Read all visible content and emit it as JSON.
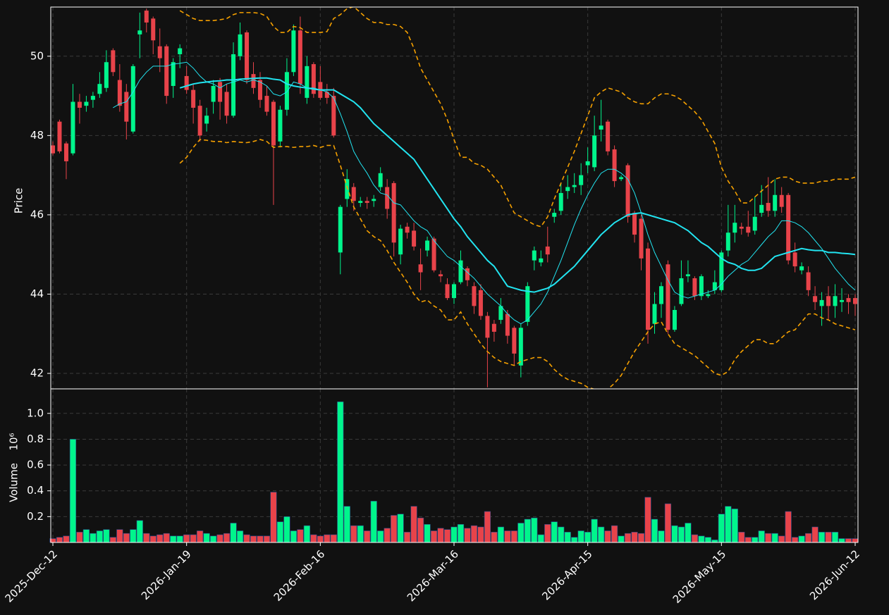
{
  "chart_data": {
    "type": "candlestick",
    "ylabel": "Price",
    "volume_label": "Volume",
    "volume_exponent": "10⁶",
    "up_color": "#00f58c",
    "down_color": "#e8434a",
    "grid": true,
    "ylim": [
      41.61,
      51.24
    ],
    "yticks": [
      42,
      44,
      46,
      48,
      50
    ],
    "volume_ylim": [
      0,
      1.19
    ],
    "volume_yticks": [
      0.2,
      0.4,
      0.6,
      0.8,
      {
        "value": 1,
        "label": "1.0"
      }
    ],
    "categories": [
      "2025-Dec-12",
      null,
      null,
      null,
      null,
      null,
      null,
      null,
      null,
      null,
      null,
      null,
      null,
      null,
      null,
      null,
      null,
      null,
      null,
      null,
      "2026-Jan-19",
      null,
      null,
      null,
      null,
      null,
      null,
      null,
      null,
      null,
      null,
      null,
      null,
      null,
      null,
      null,
      null,
      null,
      null,
      null,
      "2026-Feb-16",
      null,
      null,
      null,
      null,
      null,
      null,
      null,
      null,
      null,
      null,
      null,
      null,
      null,
      null,
      null,
      null,
      null,
      null,
      null,
      "2026-Mar-16",
      null,
      null,
      null,
      null,
      null,
      null,
      null,
      null,
      null,
      null,
      null,
      null,
      null,
      null,
      null,
      null,
      null,
      null,
      null,
      "2026-Apr-15",
      null,
      null,
      null,
      null,
      null,
      null,
      null,
      null,
      null,
      null,
      null,
      null,
      null,
      null,
      null,
      null,
      null,
      null,
      null,
      "2026-May-15",
      null,
      null,
      null,
      null,
      null,
      null,
      null,
      null,
      null,
      null,
      null,
      null,
      null,
      null,
      null,
      null,
      null,
      null,
      null,
      "2026-Jun-12"
    ],
    "open": [
      47.75,
      48.35,
      47.8,
      47.55,
      48.85,
      48.75,
      48.9,
      49.05,
      49.2,
      50.15,
      49.4,
      49.1,
      48.1,
      50.55,
      51.15,
      50.95,
      50.25,
      50.25,
      49.25,
      50.05,
      49.5,
      49.15,
      48.75,
      48.3,
      48.85,
      49.35,
      49.1,
      48.5,
      50.0,
      50.6,
      49.55,
      49.4,
      49.0,
      48.85,
      47.85,
      48.65,
      49.6,
      50.65,
      48.95,
      49.8,
      49.35,
      49.1,
      49.0,
      45.05,
      46.4,
      46.7,
      46.3,
      46.35,
      46.35,
      46.7,
      46.7,
      46.8,
      45.0,
      45.7,
      45.6,
      44.75,
      45.1,
      45.4,
      44.5,
      44.25,
      43.9,
      44.3,
      44.65,
      44.2,
      44.1,
      43.45,
      43.25,
      43.35,
      43.5,
      43.15,
      42.2,
      43.3,
      44.85,
      44.8,
      45.2,
      45.95,
      46.1,
      46.6,
      46.7,
      46.75,
      47.25,
      47.2,
      48.15,
      48.35,
      47.65,
      46.9,
      47.25,
      46.05,
      45.9,
      45.15,
      43.25,
      43.75,
      44.75,
      43.1,
      43.75,
      44.45,
      44.4,
      43.95,
      43.95,
      44.1,
      44.1,
      45.1,
      45.55,
      45.7,
      45.7,
      45.6,
      46.05,
      46.3,
      46.1,
      46.5,
      46.5,
      45.05,
      44.6,
      44.55,
      43.95,
      43.7,
      43.95,
      43.7,
      43.8,
      43.9,
      43.9
    ],
    "close": [
      47.55,
      47.6,
      47.35,
      48.85,
      48.7,
      48.85,
      49.0,
      49.3,
      49.85,
      49.6,
      48.75,
      48.35,
      49.75,
      50.65,
      50.85,
      50.4,
      49.95,
      49.0,
      49.85,
      50.2,
      49.15,
      48.7,
      48.0,
      48.5,
      49.25,
      48.85,
      48.5,
      50.05,
      50.55,
      49.4,
      49.2,
      48.9,
      48.6,
      47.75,
      48.65,
      49.6,
      50.65,
      49.3,
      49.75,
      49.05,
      48.95,
      48.95,
      48.0,
      46.2,
      46.9,
      46.35,
      46.35,
      46.3,
      46.4,
      47.05,
      46.15,
      45.3,
      45.65,
      45.55,
      45.2,
      44.55,
      45.35,
      44.6,
      44.45,
      43.9,
      44.25,
      44.85,
      44.35,
      43.7,
      43.45,
      42.9,
      43.05,
      43.7,
      42.95,
      42.5,
      43.15,
      44.2,
      45.1,
      44.9,
      45.0,
      46.05,
      46.55,
      46.7,
      46.75,
      47.0,
      47.35,
      48.0,
      48.25,
      47.6,
      46.85,
      46.95,
      45.95,
      45.5,
      44.9,
      43.1,
      43.75,
      44.2,
      43.1,
      43.6,
      44.4,
      44.5,
      43.95,
      44.45,
      44.0,
      44.3,
      45.05,
      45.55,
      45.8,
      45.65,
      45.55,
      45.95,
      46.25,
      46.1,
      46.5,
      46.2,
      44.85,
      44.7,
      44.7,
      44.1,
      43.8,
      43.85,
      43.7,
      43.95,
      43.85,
      43.8,
      43.75
    ],
    "high": [
      47.85,
      48.4,
      47.85,
      49.3,
      49.05,
      49.0,
      49.1,
      49.6,
      50.15,
      50.2,
      49.8,
      49.3,
      49.8,
      51.1,
      51.2,
      51.0,
      50.7,
      50.3,
      49.95,
      50.3,
      49.75,
      49.3,
      48.9,
      48.7,
      49.4,
      49.45,
      49.3,
      50.35,
      50.85,
      50.65,
      49.85,
      49.6,
      49.25,
      48.9,
      48.75,
      49.95,
      50.8,
      51.0,
      50.0,
      49.85,
      49.75,
      49.3,
      49.2,
      46.25,
      47.15,
      46.8,
      46.45,
      46.45,
      46.5,
      47.2,
      46.9,
      46.85,
      45.75,
      45.8,
      45.8,
      45.15,
      45.45,
      45.45,
      44.6,
      44.4,
      44.3,
      45.1,
      44.7,
      44.3,
      44.25,
      43.55,
      43.35,
      43.9,
      43.6,
      43.2,
      43.25,
      44.3,
      45.2,
      45.1,
      45.7,
      46.15,
      46.8,
      47.0,
      47.05,
      47.3,
      47.7,
      48.5,
      48.9,
      48.4,
      47.75,
      47.0,
      47.3,
      46.1,
      46.0,
      45.3,
      44.05,
      44.3,
      44.85,
      43.7,
      44.85,
      44.85,
      44.45,
      44.5,
      44.1,
      44.6,
      45.1,
      46.25,
      46.25,
      45.8,
      46.1,
      46.45,
      46.75,
      46.95,
      46.9,
      46.7,
      46.55,
      45.3,
      44.8,
      44.7,
      44.2,
      44.05,
      44.2,
      44.25,
      44.15,
      44.0,
      44.0
    ],
    "low": [
      47.5,
      47.55,
      46.9,
      47.5,
      48.3,
      48.6,
      48.7,
      48.95,
      49.1,
      49.5,
      48.6,
      47.9,
      48.05,
      49.95,
      50.6,
      50.05,
      49.6,
      48.8,
      48.95,
      49.7,
      49.05,
      48.3,
      47.85,
      48.1,
      48.55,
      48.4,
      48.3,
      48.45,
      49.9,
      49.3,
      49.05,
      48.7,
      48.5,
      46.25,
      47.7,
      48.5,
      49.5,
      49.05,
      48.8,
      48.95,
      48.9,
      48.8,
      47.95,
      44.5,
      46.2,
      46.1,
      46.2,
      46.15,
      46.2,
      46.6,
      45.9,
      44.95,
      44.75,
      45.4,
      45.1,
      44.1,
      44.95,
      44.55,
      44.3,
      43.85,
      43.75,
      44.25,
      44.2,
      43.5,
      43.35,
      41.65,
      42.8,
      43.25,
      42.75,
      42.2,
      41.9,
      43.2,
      44.6,
      44.7,
      44.8,
      45.8,
      46.0,
      46.4,
      46.55,
      46.5,
      47.05,
      47.1,
      47.85,
      47.5,
      46.7,
      46.85,
      45.8,
      45.3,
      44.6,
      42.75,
      43.0,
      43.4,
      43.0,
      43.05,
      43.7,
      44.3,
      43.85,
      43.85,
      43.9,
      44.0,
      44.05,
      44.95,
      45.3,
      45.5,
      45.45,
      45.5,
      45.95,
      45.95,
      45.95,
      46.05,
      44.75,
      44.55,
      44.5,
      43.95,
      43.6,
      43.2,
      43.35,
      43.4,
      43.55,
      43.5,
      43.45
    ],
    "volume": [
      0.03,
      0.04,
      0.05,
      0.8,
      0.08,
      0.1,
      0.07,
      0.09,
      0.1,
      0.04,
      0.1,
      0.07,
      0.1,
      0.17,
      0.07,
      0.05,
      0.06,
      0.07,
      0.05,
      0.05,
      0.06,
      0.06,
      0.09,
      0.07,
      0.05,
      0.06,
      0.07,
      0.15,
      0.09,
      0.06,
      0.05,
      0.05,
      0.05,
      0.39,
      0.16,
      0.2,
      0.09,
      0.1,
      0.13,
      0.06,
      0.05,
      0.06,
      0.06,
      1.09,
      0.28,
      0.13,
      0.13,
      0.09,
      0.32,
      0.09,
      0.11,
      0.21,
      0.22,
      0.08,
      0.28,
      0.19,
      0.14,
      0.09,
      0.11,
      0.1,
      0.12,
      0.14,
      0.11,
      0.13,
      0.12,
      0.24,
      0.08,
      0.12,
      0.09,
      0.09,
      0.15,
      0.18,
      0.19,
      0.06,
      0.14,
      0.16,
      0.12,
      0.08,
      0.04,
      0.09,
      0.08,
      0.18,
      0.12,
      0.09,
      0.13,
      0.05,
      0.07,
      0.08,
      0.07,
      0.35,
      0.18,
      0.09,
      0.3,
      0.13,
      0.12,
      0.15,
      0.06,
      0.05,
      0.04,
      0.02,
      0.22,
      0.28,
      0.26,
      0.08,
      0.04,
      0.04,
      0.09,
      0.07,
      0.07,
      0.05,
      0.24,
      0.04,
      0.05,
      0.07,
      0.12,
      0.08,
      0.08,
      0.08,
      0.03,
      0.03,
      0.03
    ],
    "lines": [
      {
        "color": "#22e4f0",
        "width": 1,
        "dash": false,
        "values": [
          null,
          null,
          null,
          null,
          null,
          null,
          null,
          null,
          null,
          48.7,
          48.8,
          48.85,
          49.1,
          49.4,
          49.6,
          49.75,
          49.75,
          49.75,
          49.8,
          49.82,
          49.85,
          49.7,
          49.5,
          49.35,
          49.3,
          49.2,
          49.3,
          49.35,
          49.4,
          49.35,
          49.4,
          49.35,
          49.25,
          49.05,
          49.0,
          49.1,
          49.35,
          49.3,
          49.2,
          49.2,
          49.15,
          49.1,
          48.95,
          48.55,
          48.1,
          47.6,
          47.3,
          47.05,
          46.75,
          46.55,
          46.5,
          46.3,
          46.25,
          46.05,
          45.85,
          45.7,
          45.6,
          45.35,
          45.15,
          44.95,
          44.85,
          44.7,
          44.55,
          44.4,
          44.2,
          44.0,
          43.85,
          43.7,
          43.5,
          43.35,
          43.25,
          43.35,
          43.55,
          43.75,
          44.05,
          44.45,
          44.85,
          45.3,
          45.75,
          46.15,
          46.5,
          46.8,
          47.05,
          47.15,
          47.15,
          47.05,
          46.9,
          46.55,
          46.05,
          45.5,
          45.05,
          44.7,
          44.35,
          44.05,
          43.95,
          43.9,
          43.95,
          44.0,
          44.05,
          44.1,
          44.25,
          44.45,
          44.6,
          44.75,
          44.85,
          45.05,
          45.25,
          45.45,
          45.6,
          45.85,
          45.85,
          45.8,
          45.7,
          45.55,
          45.35,
          45.15,
          44.9,
          44.65,
          44.45,
          44.25,
          44.1
        ]
      },
      {
        "color": "#22e4f0",
        "width": 2,
        "dash": false,
        "values": [
          null,
          null,
          null,
          null,
          null,
          null,
          null,
          null,
          null,
          null,
          null,
          null,
          null,
          null,
          null,
          null,
          null,
          null,
          null,
          49.2,
          49.25,
          49.3,
          49.33,
          49.35,
          49.37,
          49.38,
          49.4,
          49.4,
          49.42,
          49.43,
          49.44,
          49.45,
          49.45,
          49.42,
          49.4,
          49.3,
          49.25,
          49.22,
          49.2,
          49.17,
          49.15,
          49.15,
          49.15,
          49.05,
          48.95,
          48.85,
          48.7,
          48.5,
          48.3,
          48.15,
          48.0,
          47.85,
          47.7,
          47.55,
          47.4,
          47.15,
          46.9,
          46.65,
          46.4,
          46.15,
          45.9,
          45.7,
          45.45,
          45.25,
          45.05,
          44.85,
          44.7,
          44.45,
          44.2,
          44.15,
          44.1,
          44.07,
          44.05,
          44.1,
          44.15,
          44.25,
          44.4,
          44.55,
          44.7,
          44.9,
          45.1,
          45.3,
          45.5,
          45.65,
          45.8,
          45.9,
          46.0,
          46.03,
          46.05,
          46.0,
          45.95,
          45.9,
          45.85,
          45.8,
          45.7,
          45.6,
          45.45,
          45.3,
          45.2,
          45.05,
          44.9,
          44.8,
          44.75,
          44.65,
          44.6,
          44.6,
          44.65,
          44.8,
          44.95,
          45.0,
          45.05,
          45.1,
          45.15,
          45.12,
          45.1,
          45.1,
          45.05,
          45.05,
          45.03,
          45.02,
          45.0
        ]
      },
      {
        "color": "#f5a000",
        "width": 1.6,
        "dash": true,
        "values": [
          null,
          null,
          null,
          null,
          null,
          null,
          null,
          null,
          null,
          null,
          null,
          null,
          null,
          null,
          null,
          null,
          null,
          null,
          null,
          51.15,
          51.05,
          50.95,
          50.9,
          50.9,
          50.9,
          50.92,
          50.95,
          51.05,
          51.1,
          51.1,
          51.1,
          51.08,
          51.0,
          50.75,
          50.6,
          50.6,
          50.75,
          50.72,
          50.6,
          50.6,
          50.6,
          50.62,
          50.95,
          51.05,
          51.2,
          51.25,
          51.1,
          50.95,
          50.85,
          50.85,
          50.8,
          50.8,
          50.75,
          50.6,
          50.2,
          49.7,
          49.4,
          49.1,
          48.8,
          48.4,
          47.9,
          47.45,
          47.45,
          47.3,
          47.25,
          47.15,
          46.95,
          46.75,
          46.4,
          46.05,
          45.95,
          45.85,
          45.75,
          45.7,
          45.95,
          46.4,
          46.8,
          47.2,
          47.6,
          48.05,
          48.5,
          48.95,
          49.1,
          49.2,
          49.15,
          49.1,
          48.95,
          48.85,
          48.8,
          48.8,
          48.95,
          49.05,
          49.05,
          49.0,
          48.9,
          48.75,
          48.6,
          48.4,
          48.1,
          47.8,
          47.2,
          46.85,
          46.6,
          46.3,
          46.3,
          46.45,
          46.6,
          46.75,
          46.9,
          46.95,
          46.95,
          46.85,
          46.8,
          46.8,
          46.8,
          46.85,
          46.85,
          46.9,
          46.9,
          46.9,
          46.95
        ]
      },
      {
        "color": "#f5a000",
        "width": 1.6,
        "dash": true,
        "values": [
          null,
          null,
          null,
          null,
          null,
          null,
          null,
          null,
          null,
          null,
          null,
          null,
          null,
          null,
          null,
          null,
          null,
          null,
          null,
          47.3,
          47.45,
          47.7,
          47.9,
          47.88,
          47.85,
          47.85,
          47.82,
          47.85,
          47.83,
          47.82,
          47.85,
          47.9,
          47.85,
          47.7,
          47.72,
          47.72,
          47.7,
          47.72,
          47.72,
          47.75,
          47.7,
          47.75,
          47.75,
          47.25,
          46.7,
          46.2,
          45.9,
          45.6,
          45.45,
          45.35,
          45.1,
          44.8,
          44.55,
          44.3,
          44.0,
          43.8,
          43.85,
          43.7,
          43.6,
          43.35,
          43.35,
          43.55,
          43.25,
          43.0,
          42.75,
          42.55,
          42.4,
          42.3,
          42.25,
          42.2,
          42.3,
          42.35,
          42.4,
          42.4,
          42.3,
          42.1,
          41.95,
          41.85,
          41.8,
          41.75,
          41.65,
          41.6,
          41.55,
          41.6,
          41.75,
          41.95,
          42.25,
          42.55,
          42.8,
          43.05,
          43.25,
          43.3,
          43.0,
          42.75,
          42.65,
          42.55,
          42.45,
          42.3,
          42.15,
          42.0,
          41.95,
          42.05,
          42.35,
          42.55,
          42.7,
          42.85,
          42.85,
          42.75,
          42.75,
          42.9,
          43.05,
          43.1,
          43.3,
          43.5,
          43.5,
          43.4,
          43.35,
          43.25,
          43.2,
          43.15,
          43.1
        ]
      }
    ]
  }
}
